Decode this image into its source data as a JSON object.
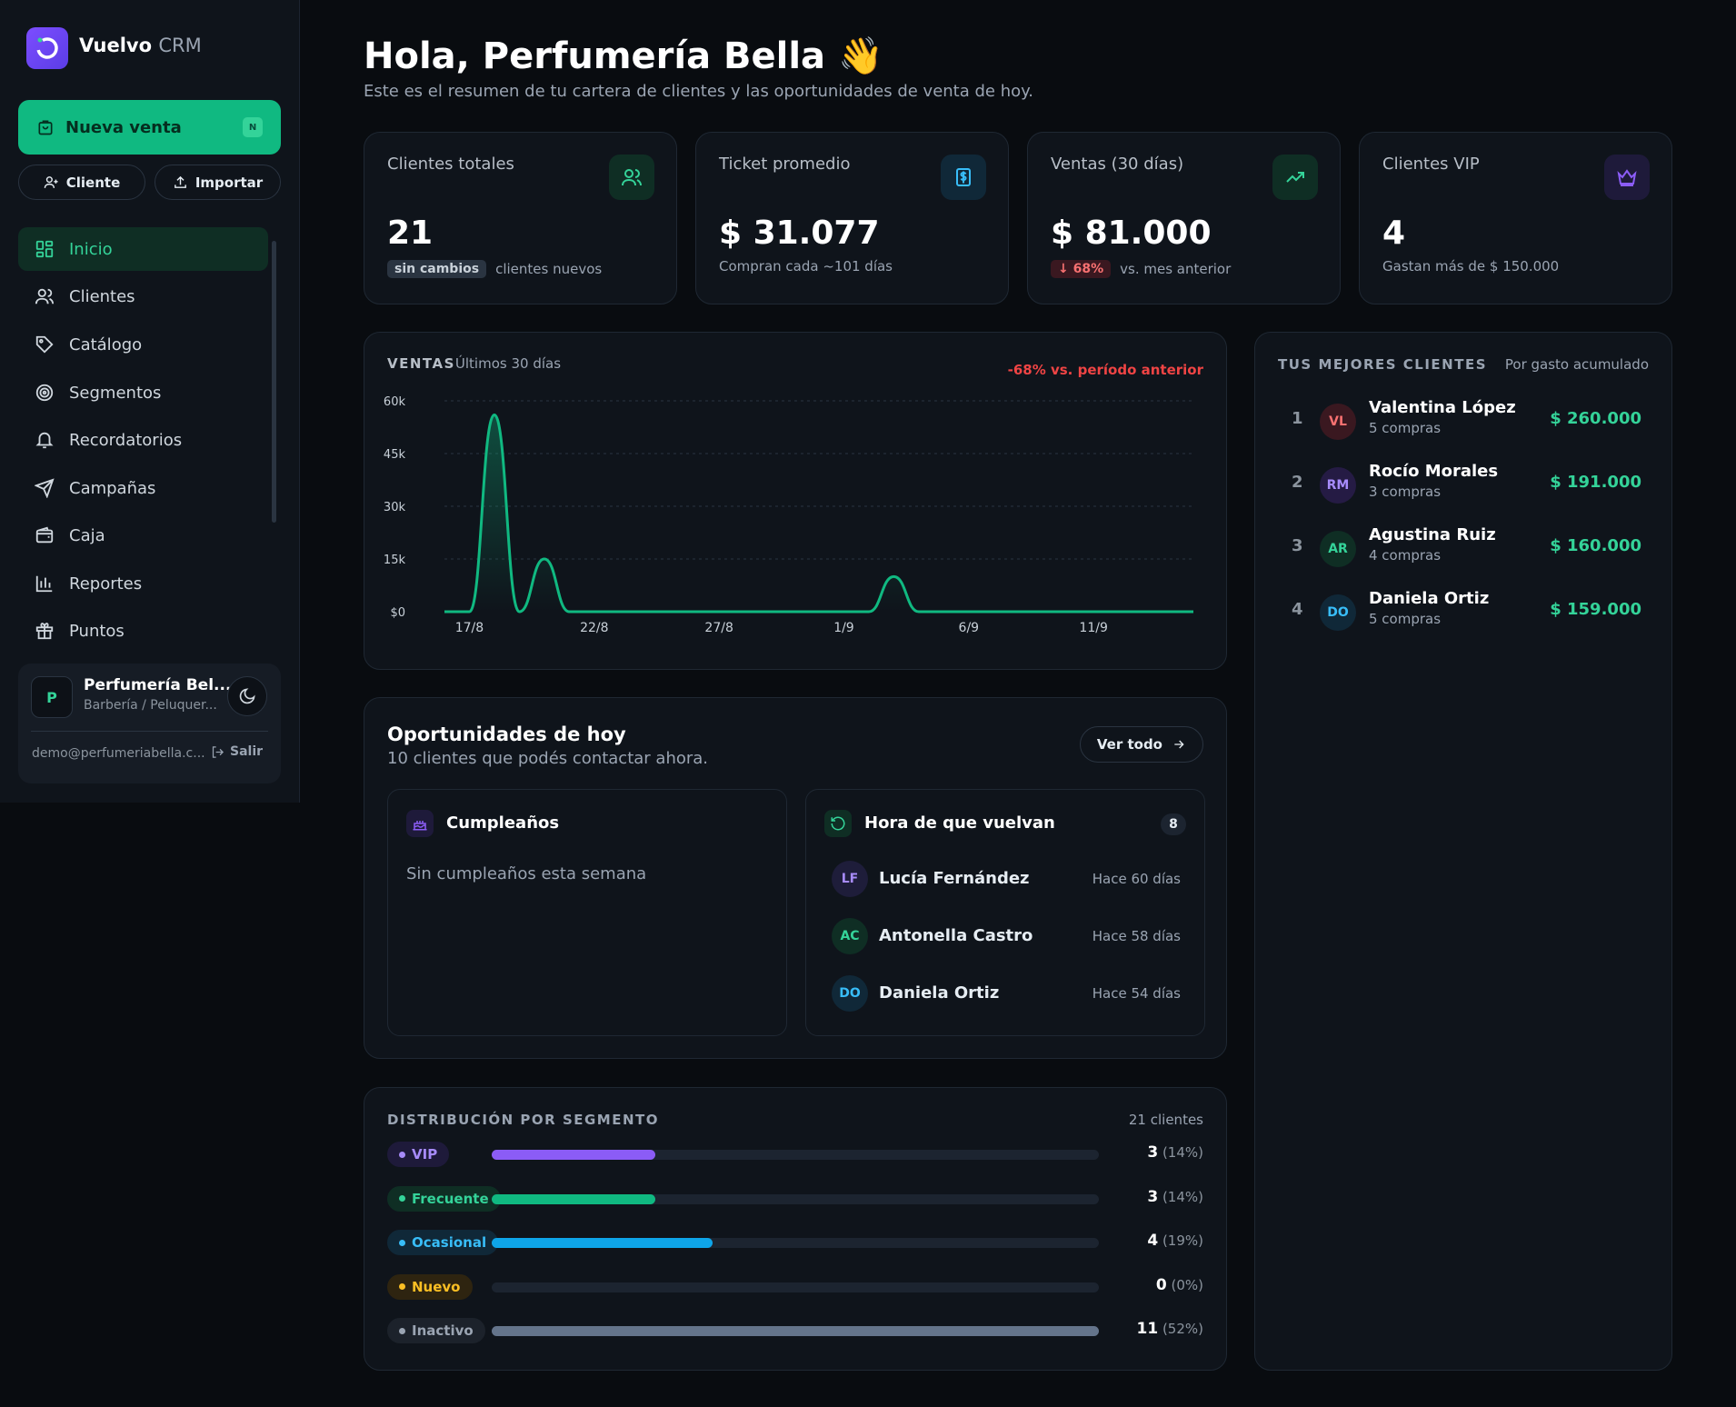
{
  "app": {
    "brand": "Vuelvo",
    "brand_suffix": "CRM"
  },
  "sidebar": {
    "primary_action": "Nueva venta",
    "primary_shortcut": "N",
    "client_button": "Cliente",
    "import_button": "Importar",
    "nav": [
      {
        "label": "Inicio",
        "icon": "grid-icon",
        "active": true
      },
      {
        "label": "Clientes",
        "icon": "users-icon"
      },
      {
        "label": "Catálogo",
        "icon": "tag-icon"
      },
      {
        "label": "Segmentos",
        "icon": "target-icon"
      },
      {
        "label": "Recordatorios",
        "icon": "bell-icon"
      },
      {
        "label": "Campañas",
        "icon": "send-icon"
      },
      {
        "label": "Caja",
        "icon": "wallet-icon"
      },
      {
        "label": "Reportes",
        "icon": "bar-chart-icon"
      },
      {
        "label": "Puntos",
        "icon": "gift-icon"
      }
    ],
    "user": {
      "initial": "P",
      "name": "Perfumería Bel...",
      "type": "Barbería / Peluquer...",
      "email": "demo@perfumeriabella.c...",
      "logout": "Salir"
    }
  },
  "header": {
    "title": "Hola, Perfumería Bella 👋",
    "subtitle": "Este es el resumen de tu cartera de clientes y las oportunidades de venta de hoy."
  },
  "kpis": [
    {
      "label": "Clientes totales",
      "value": "21",
      "badge": "sin cambios",
      "sub": "clientes nuevos",
      "icon": "users-icon",
      "color": "#34d399"
    },
    {
      "label": "Ticket promedio",
      "value": "$ 31.077",
      "sub": "Compran cada ~101 días",
      "icon": "dollar-icon",
      "color": "#38bdf8"
    },
    {
      "label": "Ventas (30 días)",
      "value": "$ 81.000",
      "badge": "68%",
      "sub": "vs. mes anterior",
      "icon": "trending-up-icon",
      "color": "#34d399"
    },
    {
      "label": "Clientes VIP",
      "value": "4",
      "sub": "Gastan más de $ 150.000",
      "icon": "crown-icon",
      "color": "#8b5cf6"
    }
  ],
  "sales": {
    "title": "VENTAS",
    "subtitle": "Últimos 30 días",
    "delta": "-68% vs. período anterior"
  },
  "chart_data": {
    "type": "area",
    "title": "VENTAS",
    "subtitle": "Últimos 30 días",
    "y_ticks": [
      "$0",
      "15k",
      "30k",
      "45k",
      "60k"
    ],
    "ylim": [
      0,
      60000
    ],
    "x_tick_labels": [
      "17/8",
      "22/8",
      "27/8",
      "1/9",
      "6/9",
      "11/9"
    ],
    "x": [
      "16/8",
      "17/8",
      "18/8",
      "19/8",
      "20/8",
      "21/8",
      "22/8",
      "23/8",
      "24/8",
      "25/8",
      "26/8",
      "27/8",
      "28/8",
      "29/8",
      "30/8",
      "31/8",
      "1/9",
      "2/9",
      "3/9",
      "4/9",
      "5/9",
      "6/9",
      "7/9",
      "8/9",
      "9/9",
      "10/9",
      "11/9",
      "12/9",
      "13/9",
      "14/9",
      "15/9"
    ],
    "values": [
      0,
      0,
      56000,
      0,
      15000,
      0,
      0,
      0,
      0,
      0,
      0,
      0,
      0,
      0,
      0,
      0,
      0,
      0,
      10000,
      0,
      0,
      0,
      0,
      0,
      0,
      0,
      0,
      0,
      0,
      0,
      0
    ],
    "color": "#10b981",
    "grid": true
  },
  "top_clients": {
    "title": "TUS MEJORES CLIENTES",
    "subtitle": "Por gasto acumulado",
    "items": [
      {
        "rank": "1",
        "initials": "VL",
        "name": "Valentina López",
        "purchases": "5 compras",
        "amount": "$ 260.000",
        "bg": "#3a1820",
        "fg": "#f87171"
      },
      {
        "rank": "2",
        "initials": "RM",
        "name": "Rocío Morales",
        "purchases": "3 compras",
        "amount": "$ 191.000",
        "bg": "#251b44",
        "fg": "#a78bfa"
      },
      {
        "rank": "3",
        "initials": "AR",
        "name": "Agustina Ruiz",
        "purchases": "4 compras",
        "amount": "$ 160.000",
        "bg": "#0f2e24",
        "fg": "#34d399"
      },
      {
        "rank": "4",
        "initials": "DO",
        "name": "Daniela Ortiz",
        "purchases": "5 compras",
        "amount": "$ 159.000",
        "bg": "#102838",
        "fg": "#38bdf8"
      }
    ]
  },
  "opportunities": {
    "title": "Oportunidades de hoy",
    "subtitle": "10 clientes que podés contactar ahora.",
    "view_all": "Ver todo",
    "birthdays": {
      "title": "Cumpleaños",
      "empty": "Sin cumpleaños esta semana"
    },
    "return": {
      "title": "Hora de que vuelvan",
      "count": "8",
      "items": [
        {
          "initials": "LF",
          "name": "Lucía Fernández",
          "ago": "Hace 60 días",
          "bg": "#1e1d3a",
          "fg": "#a78bfa"
        },
        {
          "initials": "AC",
          "name": "Antonella Castro",
          "ago": "Hace 58 días",
          "bg": "#0f2e24",
          "fg": "#34d399"
        },
        {
          "initials": "DO",
          "name": "Daniela Ortiz",
          "ago": "Hace 54 días",
          "bg": "#102838",
          "fg": "#38bdf8"
        }
      ]
    }
  },
  "segments": {
    "title": "DISTRIBUCIÓN POR SEGMENTO",
    "total": "21 clientes",
    "items": [
      {
        "label": "VIP",
        "count": "3",
        "pct": "(14%)",
        "share": 0.27,
        "color": "#8b5cf6",
        "tag_bg": "#1e1a3a",
        "tag_fg": "#a78bfa"
      },
      {
        "label": "Frecuente",
        "count": "3",
        "pct": "(14%)",
        "share": 0.27,
        "color": "#10b981",
        "tag_bg": "#0f2e24",
        "tag_fg": "#34d399"
      },
      {
        "label": "Ocasional",
        "count": "4",
        "pct": "(19%)",
        "share": 0.364,
        "color": "#0ea5e9",
        "tag_bg": "#102838",
        "tag_fg": "#38bdf8"
      },
      {
        "label": "Nuevo",
        "count": "0",
        "pct": "(0%)",
        "share": 0,
        "color": "#f59e0b",
        "tag_bg": "#2e2410",
        "tag_fg": "#fbbf24"
      },
      {
        "label": "Inactivo",
        "count": "11",
        "pct": "(52%)",
        "share": 1,
        "color": "#64748b",
        "tag_bg": "#1c222b",
        "tag_fg": "#9aa4b2"
      }
    ]
  }
}
